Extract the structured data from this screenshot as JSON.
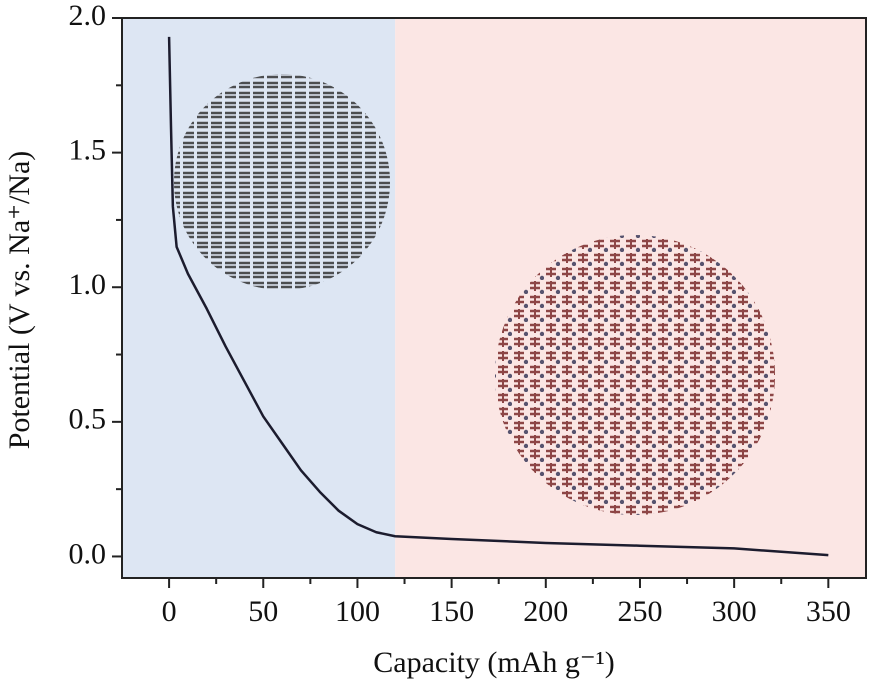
{
  "chart_data": {
    "type": "line",
    "x_label": "Capacity (mAh g⁻¹)",
    "y_label": "Potential (V vs. Na⁺/Na)",
    "x": [
      0,
      1,
      2,
      4,
      10,
      20,
      30,
      40,
      50,
      60,
      70,
      80,
      90,
      100,
      110,
      120,
      150,
      200,
      250,
      300,
      350
    ],
    "series": [
      {
        "color": "#1c1c2e",
        "values": [
          1.93,
          1.6,
          1.3,
          1.15,
          1.05,
          0.92,
          0.78,
          0.65,
          0.52,
          0.42,
          0.32,
          0.24,
          0.17,
          0.12,
          0.09,
          0.075,
          0.065,
          0.05,
          0.04,
          0.03,
          0.005
        ]
      }
    ],
    "regions": [
      {
        "x": [
          -25,
          120
        ],
        "color": "#dde6f3"
      },
      {
        "x": [
          120,
          370
        ],
        "color": "#fbe6e4"
      }
    ],
    "xlim": [
      -25,
      370
    ],
    "xticks": [
      0,
      50,
      100,
      150,
      200,
      250,
      300,
      350
    ],
    "ylim": [
      -0.08,
      2.0
    ],
    "yticks": [
      {
        "value": 0,
        "label": "0.0"
      },
      0.5,
      {
        "value": 1,
        "label": "1.0"
      },
      1.5,
      {
        "value": 2,
        "label": "2.0"
      }
    ]
  }
}
